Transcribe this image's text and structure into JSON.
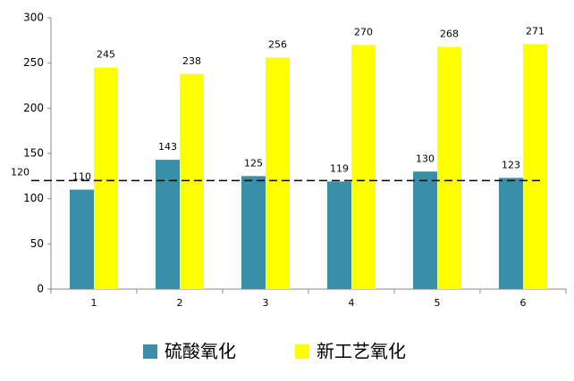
{
  "chart_data": {
    "type": "bar",
    "categories": [
      "1",
      "2",
      "3",
      "4",
      "5",
      "6"
    ],
    "series": [
      {
        "name": "硫酸氧化",
        "color": "#3a8fa8",
        "values": [
          110,
          143,
          125,
          119,
          130,
          123
        ]
      },
      {
        "name": "新工艺氧化",
        "color": "#ffff00",
        "values": [
          245,
          238,
          256,
          270,
          268,
          271
        ]
      }
    ],
    "ylim": [
      0,
      300
    ],
    "yticks": [
      0,
      50,
      100,
      150,
      200,
      250,
      300
    ],
    "grid": false,
    "reference_line": {
      "value": 120,
      "color": "#000000",
      "style": "dashed"
    },
    "legend": "bottom"
  }
}
